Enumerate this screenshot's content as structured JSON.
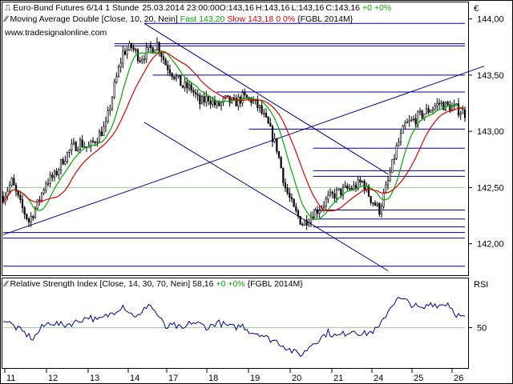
{
  "chart_data": [
    {
      "type": "candlestick",
      "title": "Euro-Bund Futures 6/14 1 Stunde",
      "datetime": "25.03.2014 23:00:00",
      "ohlc": {
        "open_label": "O:",
        "open": "143,16",
        "high_label": "H:",
        "high": "143,16",
        "low_label": "L:",
        "low": "143,16",
        "close_label": "C:",
        "close": "143,16",
        "change": "+0 +0%"
      },
      "currency_symbol": "€",
      "indicator": {
        "name": "Moving Average Double [Close, 10, 20, Nein]",
        "fast_label": "Fast",
        "fast_value": "143,20",
        "fast_color": "#00aa00",
        "slow_label": "Slow",
        "slow_value": "143,18",
        "slow_change": "0 0%",
        "slow_color": "#dd0000",
        "instrument": "{FGBL 2014M}"
      },
      "watermark": "www.tradesignalonline.com",
      "y_ticks": [
        "144,00",
        "143,50",
        "143,00",
        "142,50",
        "142,00"
      ],
      "y_tick_values": [
        144.0,
        143.5,
        143.0,
        142.5,
        142.0
      ],
      "ylim": [
        141.72,
        144.14
      ],
      "x_tick_labels": [
        "11",
        "12",
        "13",
        "14",
        "17",
        "18",
        "19",
        "20",
        "21",
        "24",
        "25",
        "26"
      ],
      "candle_color": "#000000",
      "candle_anchors": [
        [
          0,
          142.42
        ],
        [
          4,
          142.55
        ],
        [
          8,
          142.35
        ],
        [
          12,
          142.2
        ],
        [
          16,
          142.35
        ],
        [
          20,
          142.55
        ],
        [
          24,
          142.6
        ],
        [
          28,
          142.75
        ],
        [
          32,
          142.85
        ],
        [
          36,
          142.9
        ],
        [
          40,
          142.85
        ],
        [
          44,
          142.95
        ],
        [
          48,
          143.05
        ],
        [
          52,
          143.4
        ],
        [
          56,
          143.7
        ],
        [
          60,
          143.75
        ],
        [
          64,
          143.65
        ],
        [
          68,
          143.72
        ],
        [
          72,
          143.78
        ],
        [
          76,
          143.6
        ],
        [
          80,
          143.5
        ],
        [
          84,
          143.4
        ],
        [
          88,
          143.38
        ],
        [
          92,
          143.25
        ],
        [
          96,
          143.3
        ],
        [
          100,
          143.22
        ],
        [
          104,
          143.28
        ],
        [
          108,
          143.25
        ],
        [
          112,
          143.3
        ],
        [
          116,
          143.28
        ],
        [
          120,
          143.2
        ],
        [
          124,
          143.05
        ],
        [
          128,
          142.85
        ],
        [
          132,
          142.5
        ],
        [
          136,
          142.3
        ],
        [
          140,
          142.18
        ],
        [
          144,
          142.25
        ],
        [
          148,
          142.32
        ],
        [
          152,
          142.4
        ],
        [
          156,
          142.45
        ],
        [
          160,
          142.48
        ],
        [
          164,
          142.5
        ],
        [
          168,
          142.55
        ],
        [
          172,
          142.4
        ],
        [
          176,
          142.3
        ],
        [
          180,
          142.55
        ],
        [
          184,
          142.85
        ],
        [
          188,
          143.05
        ],
        [
          192,
          143.1
        ],
        [
          196,
          143.15
        ],
        [
          200,
          143.2
        ],
        [
          204,
          143.25
        ],
        [
          208,
          143.22
        ],
        [
          212,
          143.2
        ],
        [
          216,
          143.16
        ]
      ],
      "trend_lines": [
        {
          "from": [
            0,
            142.08
          ],
          "to": [
            225,
            143.58
          ],
          "color": "#00008b"
        },
        {
          "from": [
            66,
            143.96
          ],
          "to": [
            180,
            142.62
          ],
          "color": "#00008b"
        },
        {
          "from": [
            66,
            143.08
          ],
          "to": [
            180,
            141.76
          ],
          "color": "#00008b"
        }
      ],
      "h_lines": [
        {
          "from": 0,
          "value": 141.8
        },
        {
          "from": 0,
          "value": 142.05
        },
        {
          "from": 0,
          "value": 142.1
        },
        {
          "from": 145,
          "value": 142.15
        },
        {
          "from": 145,
          "value": 142.22
        },
        {
          "from": 145,
          "value": 142.3
        },
        {
          "from": 145,
          "value": 142.6
        },
        {
          "from": 145,
          "value": 142.65
        },
        {
          "from": 145,
          "value": 142.85
        },
        {
          "from": 115,
          "value": 143.02
        },
        {
          "from": 100,
          "value": 143.35
        },
        {
          "from": 70,
          "value": 143.5
        },
        {
          "from": 52,
          "value": 143.76
        },
        {
          "from": 52,
          "value": 143.78
        },
        {
          "from": 66,
          "value": 143.96
        }
      ],
      "h_line_color": "#00008b",
      "reference_level": {
        "value": 142.5,
        "color": "#99cc99"
      },
      "grid": false
    },
    {
      "type": "line",
      "title": "Relative Strength Index [Close, 14, 30, 70, Nein]",
      "value": "58,16",
      "change": "+0 +0%",
      "change_color": "#00aa00",
      "instrument": "{FGBL 2014M}",
      "ylabel": "RSI",
      "y_ticks": [
        "50"
      ],
      "y_tick_values": [
        50
      ],
      "ylim": [
        14,
        94
      ],
      "reference_level": {
        "value": 50,
        "color": "#99cc99"
      },
      "line_color": "#00008b",
      "anchors": [
        [
          0,
          58
        ],
        [
          6,
          50
        ],
        [
          10,
          45
        ],
        [
          14,
          40
        ],
        [
          18,
          50
        ],
        [
          22,
          55
        ],
        [
          28,
          52
        ],
        [
          34,
          55
        ],
        [
          40,
          60
        ],
        [
          44,
          56
        ],
        [
          50,
          62
        ],
        [
          56,
          70
        ],
        [
          60,
          62
        ],
        [
          64,
          60
        ],
        [
          68,
          72
        ],
        [
          72,
          62
        ],
        [
          76,
          50
        ],
        [
          80,
          52
        ],
        [
          84,
          48
        ],
        [
          88,
          55
        ],
        [
          92,
          53
        ],
        [
          96,
          50
        ],
        [
          100,
          55
        ],
        [
          104,
          52
        ],
        [
          108,
          50
        ],
        [
          112,
          52
        ],
        [
          116,
          46
        ],
        [
          120,
          45
        ],
        [
          124,
          40
        ],
        [
          128,
          38
        ],
        [
          132,
          33
        ],
        [
          136,
          28
        ],
        [
          140,
          26
        ],
        [
          144,
          35
        ],
        [
          148,
          40
        ],
        [
          152,
          46
        ],
        [
          156,
          42
        ],
        [
          160,
          45
        ],
        [
          164,
          48
        ],
        [
          168,
          44
        ],
        [
          172,
          46
        ],
        [
          176,
          50
        ],
        [
          180,
          65
        ],
        [
          184,
          76
        ],
        [
          188,
          74
        ],
        [
          192,
          70
        ],
        [
          196,
          66
        ],
        [
          200,
          72
        ],
        [
          204,
          70
        ],
        [
          208,
          72
        ],
        [
          212,
          62
        ],
        [
          216,
          58
        ]
      ],
      "grid": false
    }
  ]
}
